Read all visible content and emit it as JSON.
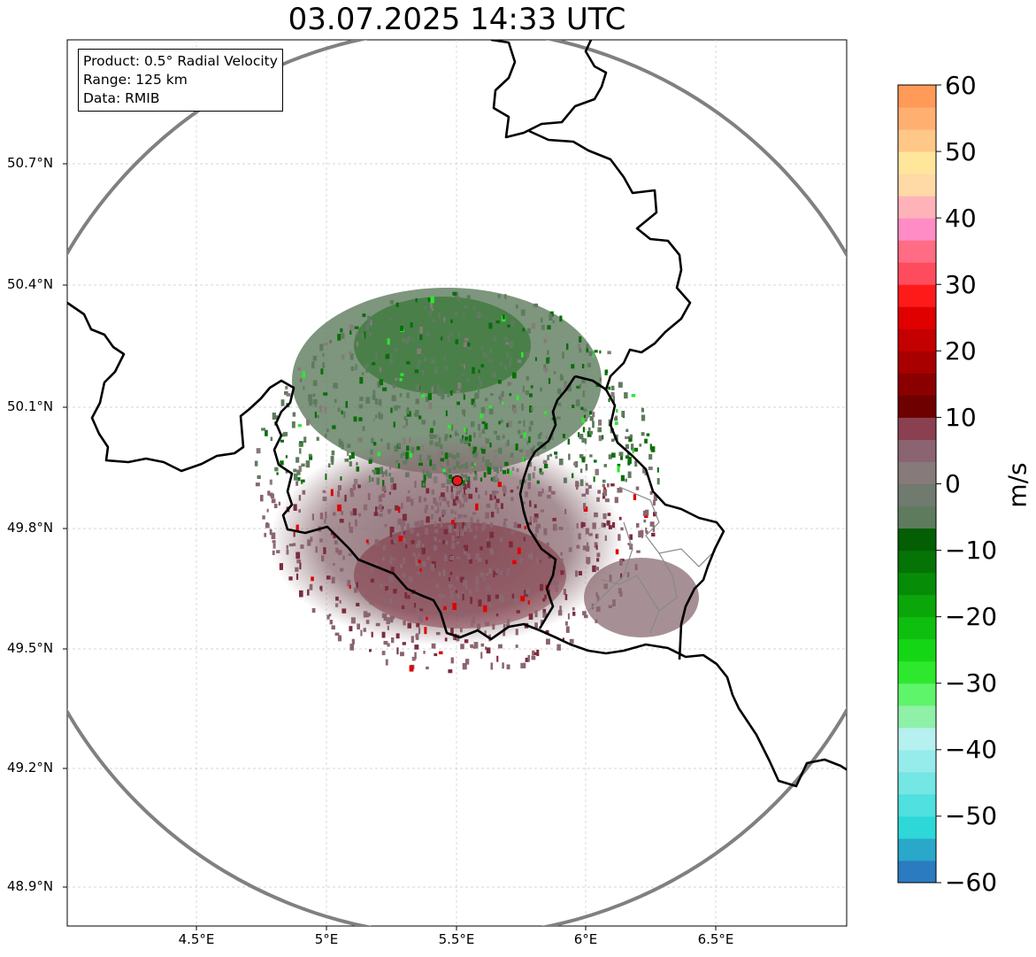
{
  "title": "03.07.2025 14:33 UTC",
  "info_box": {
    "product": "Product: 0.5° Radial Velocity",
    "range": "Range: 125 km",
    "data": "Data: RMIB"
  },
  "map": {
    "lat_ticks": [
      "50.7°N",
      "50.4°N",
      "50.1°N",
      "49.8°N",
      "49.5°N",
      "49.2°N",
      "48.9°N"
    ],
    "lon_ticks": [
      "4.5°E",
      "5°E",
      "5.5°E",
      "6°E",
      "6.5°E"
    ],
    "radar_site": {
      "lon": 5.5,
      "lat": 49.91
    },
    "range_ring_km": 125
  },
  "colorbar": {
    "unit": "m/s",
    "ticks": [
      "60",
      "50",
      "40",
      "30",
      "20",
      "10",
      "0",
      "−10",
      "−20",
      "−30",
      "−40",
      "−50",
      "−60"
    ],
    "range": [
      -60,
      60
    ],
    "colors": [
      "#2a7bbf",
      "#29a8c9",
      "#2ed8d8",
      "#4fe0df",
      "#74e6e4",
      "#96eceb",
      "#b6f0ef",
      "#8ff0a8",
      "#5ff56a",
      "#2ee82e",
      "#15d615",
      "#0fbf0f",
      "#0aa60a",
      "#078c07",
      "#057305",
      "#045e04",
      "#5e7b5e",
      "#707a6e",
      "#877a7a",
      "#8a6470",
      "#8a4050",
      "#6e0000",
      "#8a0000",
      "#a80000",
      "#c40000",
      "#e00000",
      "#ff1a1a",
      "#ff4c5c",
      "#ff6c84",
      "#ff8cc4",
      "#ffb3b8",
      "#ffd9a6",
      "#ffe69a",
      "#ffc888",
      "#ffb070",
      "#ff9a58"
    ]
  },
  "colors": {
    "background": "#ffffff",
    "border": "#000000",
    "range_ring": "#808080",
    "radar_site": "#e41a1c",
    "grid": "#c8c8c8"
  }
}
